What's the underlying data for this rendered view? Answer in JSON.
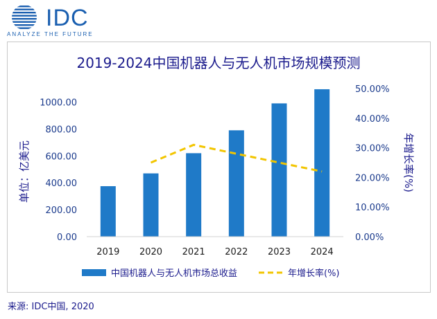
{
  "logo": {
    "name": "IDC",
    "tagline": "ANALYZE THE FUTURE"
  },
  "source": "来源: IDC中国, 2020",
  "colors": {
    "bar": "#1f7ac8",
    "line": "#f2c500",
    "text": "#1a1a8c",
    "axis_text": "#1a3a8c",
    "logo": "#1a5fb0"
  },
  "chart_data": {
    "type": "bar",
    "title": "2019-2024中国机器人与无人机市场规模预测",
    "categories": [
      "2019",
      "2020",
      "2021",
      "2022",
      "2023",
      "2024"
    ],
    "series": [
      {
        "name": "中国机器人与无人机市场总收益",
        "kind": "bar",
        "axis": "left",
        "values": [
          375,
          470,
          620,
          790,
          990,
          1095
        ]
      },
      {
        "name": "年增长率(%)",
        "kind": "line",
        "style": "dashed",
        "axis": "right",
        "values": [
          null,
          25.0,
          31.0,
          28.0,
          25.0,
          22.0
        ]
      }
    ],
    "ylabel": "单位：亿美元",
    "y2label": "年增长率(%)",
    "ylim": [
      0,
      1100
    ],
    "y2lim": [
      0,
      50
    ],
    "yticks": [
      "0.00",
      "200.00",
      "400.00",
      "600.00",
      "800.00",
      "1000.00"
    ],
    "y2ticks": [
      "0.00%",
      "10.00%",
      "20.00%",
      "30.00%",
      "40.00%",
      "50.00%"
    ],
    "legend_position": "bottom"
  }
}
